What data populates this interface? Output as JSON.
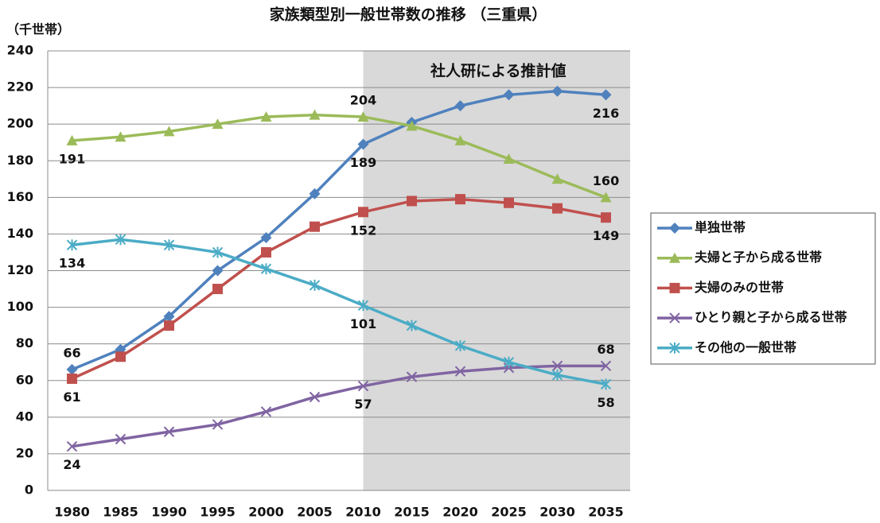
{
  "chart_data": {
    "type": "line",
    "title": "家族類型別一般世帯数の推移 （三重県）",
    "y_label": "（千世帯）",
    "projection_label": "社人研による推計値",
    "projection_from": "2015",
    "categories": [
      "1980",
      "1985",
      "1990",
      "1995",
      "2000",
      "2005",
      "2010",
      "2015",
      "2020",
      "2025",
      "2030",
      "2035"
    ],
    "series": [
      {
        "name": "単独世帯",
        "color": "#4f81bd",
        "marker": "diamond",
        "values": [
          66,
          77,
          95,
          120,
          138,
          162,
          189,
          201,
          210,
          216,
          218,
          216
        ],
        "labeled": [
          0,
          6,
          11
        ]
      },
      {
        "name": "夫婦と子から成る世帯",
        "color": "#9bbb59",
        "marker": "triangle",
        "values": [
          191,
          193,
          196,
          200,
          204,
          205,
          204,
          199,
          191,
          181,
          170,
          160
        ],
        "labeled": [
          0,
          6,
          11
        ]
      },
      {
        "name": "夫婦のみの世帯",
        "color": "#c0504d",
        "marker": "square",
        "values": [
          61,
          73,
          90,
          110,
          130,
          144,
          152,
          158,
          159,
          157,
          154,
          149
        ],
        "labeled": [
          0,
          6,
          11
        ]
      },
      {
        "name": "ひとり親と子から成る世帯",
        "color": "#8064a2",
        "marker": "x",
        "values": [
          24,
          28,
          32,
          36,
          43,
          51,
          57,
          62,
          65,
          67,
          68,
          68
        ],
        "labeled": [
          0,
          6,
          11
        ]
      },
      {
        "name": "その他の一般世帯",
        "color": "#4bacc6",
        "marker": "star",
        "values": [
          134,
          137,
          134,
          130,
          121,
          112,
          101,
          90,
          79,
          70,
          63,
          58
        ],
        "labeled": [
          0,
          6,
          11
        ]
      }
    ],
    "ylim": [
      0,
      240
    ],
    "yticks": [
      0,
      20,
      40,
      60,
      80,
      100,
      120,
      140,
      160,
      180,
      200,
      220,
      240
    ],
    "grid": true,
    "legend": "right"
  }
}
